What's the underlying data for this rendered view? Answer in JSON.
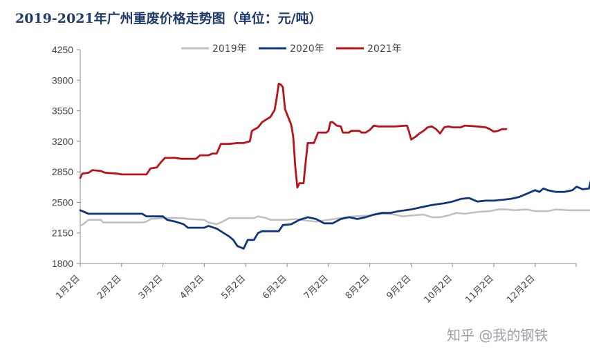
{
  "chart_data": {
    "type": "line",
    "title": "2019-2021年广州重废价格走势图（单位：元/吨）",
    "ylim": [
      1800,
      4250
    ],
    "yticks": [
      1800,
      2150,
      2500,
      2850,
      3200,
      3550,
      3900,
      4250
    ],
    "categories": [
      "1月2日",
      "2月2日",
      "3月2日",
      "4月2日",
      "5月2日",
      "6月2日",
      "7月2日",
      "8月2日",
      "9月2日",
      "10月2日",
      "11月2日",
      "12月2日"
    ],
    "legend_position": "top",
    "grid": false,
    "series": [
      {
        "name": "2019年",
        "color": "#c0c0c0",
        "points": [
          [
            0,
            2230
          ],
          [
            0.1,
            2260
          ],
          [
            0.2,
            2300
          ],
          [
            0.5,
            2300
          ],
          [
            0.55,
            2270
          ],
          [
            1.0,
            2270
          ],
          [
            1.5,
            2270
          ],
          [
            1.6,
            2280
          ],
          [
            1.7,
            2310
          ],
          [
            2.0,
            2320
          ],
          [
            2.5,
            2320
          ],
          [
            2.6,
            2310
          ],
          [
            3.0,
            2300
          ],
          [
            3.1,
            2270
          ],
          [
            3.3,
            2250
          ],
          [
            3.4,
            2270
          ],
          [
            3.6,
            2320
          ],
          [
            4.0,
            2320
          ],
          [
            4.2,
            2320
          ],
          [
            4.3,
            2340
          ],
          [
            4.5,
            2320
          ],
          [
            4.6,
            2300
          ],
          [
            5.0,
            2300
          ],
          [
            5.2,
            2310
          ],
          [
            5.5,
            2290
          ],
          [
            5.7,
            2280
          ],
          [
            6.0,
            2300
          ],
          [
            6.3,
            2320
          ],
          [
            6.6,
            2340
          ],
          [
            7.0,
            2350
          ],
          [
            7.3,
            2370
          ],
          [
            7.6,
            2360
          ],
          [
            7.8,
            2340
          ],
          [
            8.0,
            2350
          ],
          [
            8.3,
            2360
          ],
          [
            8.5,
            2330
          ],
          [
            8.7,
            2330
          ],
          [
            8.9,
            2350
          ],
          [
            9.1,
            2380
          ],
          [
            9.3,
            2370
          ],
          [
            9.6,
            2390
          ],
          [
            9.9,
            2400
          ],
          [
            10.1,
            2420
          ],
          [
            10.3,
            2420
          ],
          [
            10.5,
            2410
          ],
          [
            10.8,
            2420
          ],
          [
            11.0,
            2400
          ],
          [
            11.3,
            2400
          ],
          [
            11.5,
            2420
          ],
          [
            11.8,
            2410
          ],
          [
            12.0,
            2410
          ],
          [
            12.3,
            2410
          ],
          [
            12.45,
            2410
          ]
        ]
      },
      {
        "name": "2020年",
        "color": "#10357a",
        "points": [
          [
            0,
            2410
          ],
          [
            0.2,
            2370
          ],
          [
            1.0,
            2370
          ],
          [
            1.5,
            2370
          ],
          [
            1.6,
            2340
          ],
          [
            2.0,
            2340
          ],
          [
            2.1,
            2300
          ],
          [
            2.3,
            2280
          ],
          [
            2.5,
            2250
          ],
          [
            2.6,
            2210
          ],
          [
            3.0,
            2210
          ],
          [
            3.1,
            2230
          ],
          [
            3.3,
            2200
          ],
          [
            3.4,
            2170
          ],
          [
            3.5,
            2140
          ],
          [
            3.6,
            2110
          ],
          [
            3.7,
            2070
          ],
          [
            3.8,
            2000
          ],
          [
            3.9,
            1980
          ],
          [
            3.95,
            1970
          ],
          [
            4.05,
            2070
          ],
          [
            4.2,
            2070
          ],
          [
            4.3,
            2150
          ],
          [
            4.4,
            2170
          ],
          [
            4.8,
            2170
          ],
          [
            4.9,
            2240
          ],
          [
            5.1,
            2250
          ],
          [
            5.3,
            2300
          ],
          [
            5.5,
            2330
          ],
          [
            5.7,
            2310
          ],
          [
            5.9,
            2260
          ],
          [
            6.1,
            2260
          ],
          [
            6.3,
            2310
          ],
          [
            6.5,
            2330
          ],
          [
            6.7,
            2310
          ],
          [
            6.9,
            2330
          ],
          [
            7.1,
            2360
          ],
          [
            7.3,
            2380
          ],
          [
            7.5,
            2380
          ],
          [
            7.7,
            2400
          ],
          [
            8.0,
            2420
          ],
          [
            8.2,
            2440
          ],
          [
            8.5,
            2470
          ],
          [
            8.8,
            2490
          ],
          [
            9.0,
            2510
          ],
          [
            9.2,
            2540
          ],
          [
            9.4,
            2550
          ],
          [
            9.6,
            2510
          ],
          [
            9.8,
            2520
          ],
          [
            10.0,
            2520
          ],
          [
            10.2,
            2530
          ],
          [
            10.4,
            2540
          ],
          [
            10.6,
            2560
          ],
          [
            10.8,
            2600
          ],
          [
            10.9,
            2620
          ],
          [
            11.0,
            2640
          ],
          [
            11.1,
            2620
          ],
          [
            11.2,
            2660
          ],
          [
            11.3,
            2640
          ],
          [
            11.5,
            2620
          ],
          [
            11.7,
            2620
          ],
          [
            11.9,
            2640
          ],
          [
            12.0,
            2680
          ],
          [
            12.15,
            2650
          ],
          [
            12.3,
            2660
          ],
          [
            12.35,
            2760
          ],
          [
            12.45,
            2830
          ],
          [
            12.6,
            2810
          ],
          [
            12.75,
            2790
          ]
        ]
      },
      {
        "name": "2021年",
        "color": "#b8121b",
        "points": [
          [
            0,
            2780
          ],
          [
            0.05,
            2830
          ],
          [
            0.2,
            2840
          ],
          [
            0.3,
            2870
          ],
          [
            0.5,
            2860
          ],
          [
            0.6,
            2840
          ],
          [
            0.9,
            2830
          ],
          [
            1.0,
            2820
          ],
          [
            1.5,
            2820
          ],
          [
            1.6,
            2820
          ],
          [
            1.7,
            2890
          ],
          [
            1.85,
            2900
          ],
          [
            1.95,
            2960
          ],
          [
            2.05,
            3010
          ],
          [
            2.3,
            3010
          ],
          [
            2.45,
            3000
          ],
          [
            2.8,
            3000
          ],
          [
            2.9,
            3040
          ],
          [
            3.1,
            3040
          ],
          [
            3.2,
            3060
          ],
          [
            3.3,
            3060
          ],
          [
            3.4,
            3170
          ],
          [
            3.6,
            3170
          ],
          [
            3.8,
            3180
          ],
          [
            3.95,
            3180
          ],
          [
            4.1,
            3200
          ],
          [
            4.15,
            3320
          ],
          [
            4.3,
            3360
          ],
          [
            4.4,
            3420
          ],
          [
            4.5,
            3450
          ],
          [
            4.6,
            3480
          ],
          [
            4.7,
            3560
          ],
          [
            4.75,
            3700
          ],
          [
            4.8,
            3860
          ],
          [
            4.85,
            3850
          ],
          [
            4.9,
            3820
          ],
          [
            4.95,
            3570
          ],
          [
            5.0,
            3510
          ],
          [
            5.05,
            3450
          ],
          [
            5.1,
            3390
          ],
          [
            5.15,
            3250
          ],
          [
            5.2,
            2900
          ],
          [
            5.25,
            2670
          ],
          [
            5.3,
            2720
          ],
          [
            5.4,
            2720
          ],
          [
            5.45,
            2960
          ],
          [
            5.5,
            3180
          ],
          [
            5.55,
            3180
          ],
          [
            5.65,
            3180
          ],
          [
            5.75,
            3300
          ],
          [
            5.85,
            3300
          ],
          [
            5.95,
            3300
          ],
          [
            6.0,
            3320
          ],
          [
            6.05,
            3420
          ],
          [
            6.1,
            3420
          ],
          [
            6.2,
            3380
          ],
          [
            6.3,
            3370
          ],
          [
            6.35,
            3300
          ],
          [
            6.5,
            3300
          ],
          [
            6.55,
            3320
          ],
          [
            6.75,
            3320
          ],
          [
            6.8,
            3300
          ],
          [
            6.9,
            3300
          ],
          [
            7.0,
            3330
          ],
          [
            7.1,
            3380
          ],
          [
            7.2,
            3370
          ],
          [
            7.4,
            3370
          ],
          [
            7.6,
            3370
          ],
          [
            7.9,
            3380
          ],
          [
            7.95,
            3310
          ],
          [
            8.0,
            3220
          ],
          [
            8.1,
            3250
          ],
          [
            8.2,
            3290
          ],
          [
            8.3,
            3320
          ],
          [
            8.4,
            3360
          ],
          [
            8.5,
            3370
          ],
          [
            8.6,
            3340
          ],
          [
            8.7,
            3290
          ],
          [
            8.8,
            3360
          ],
          [
            8.9,
            3370
          ],
          [
            9.0,
            3360
          ],
          [
            9.2,
            3360
          ],
          [
            9.3,
            3380
          ],
          [
            9.6,
            3370
          ],
          [
            9.8,
            3360
          ],
          [
            9.9,
            3340
          ],
          [
            10.0,
            3310
          ],
          [
            10.1,
            3320
          ],
          [
            10.2,
            3340
          ],
          [
            10.3,
            3340
          ]
        ]
      }
    ]
  },
  "watermark": "知乎 @我的钢铁"
}
